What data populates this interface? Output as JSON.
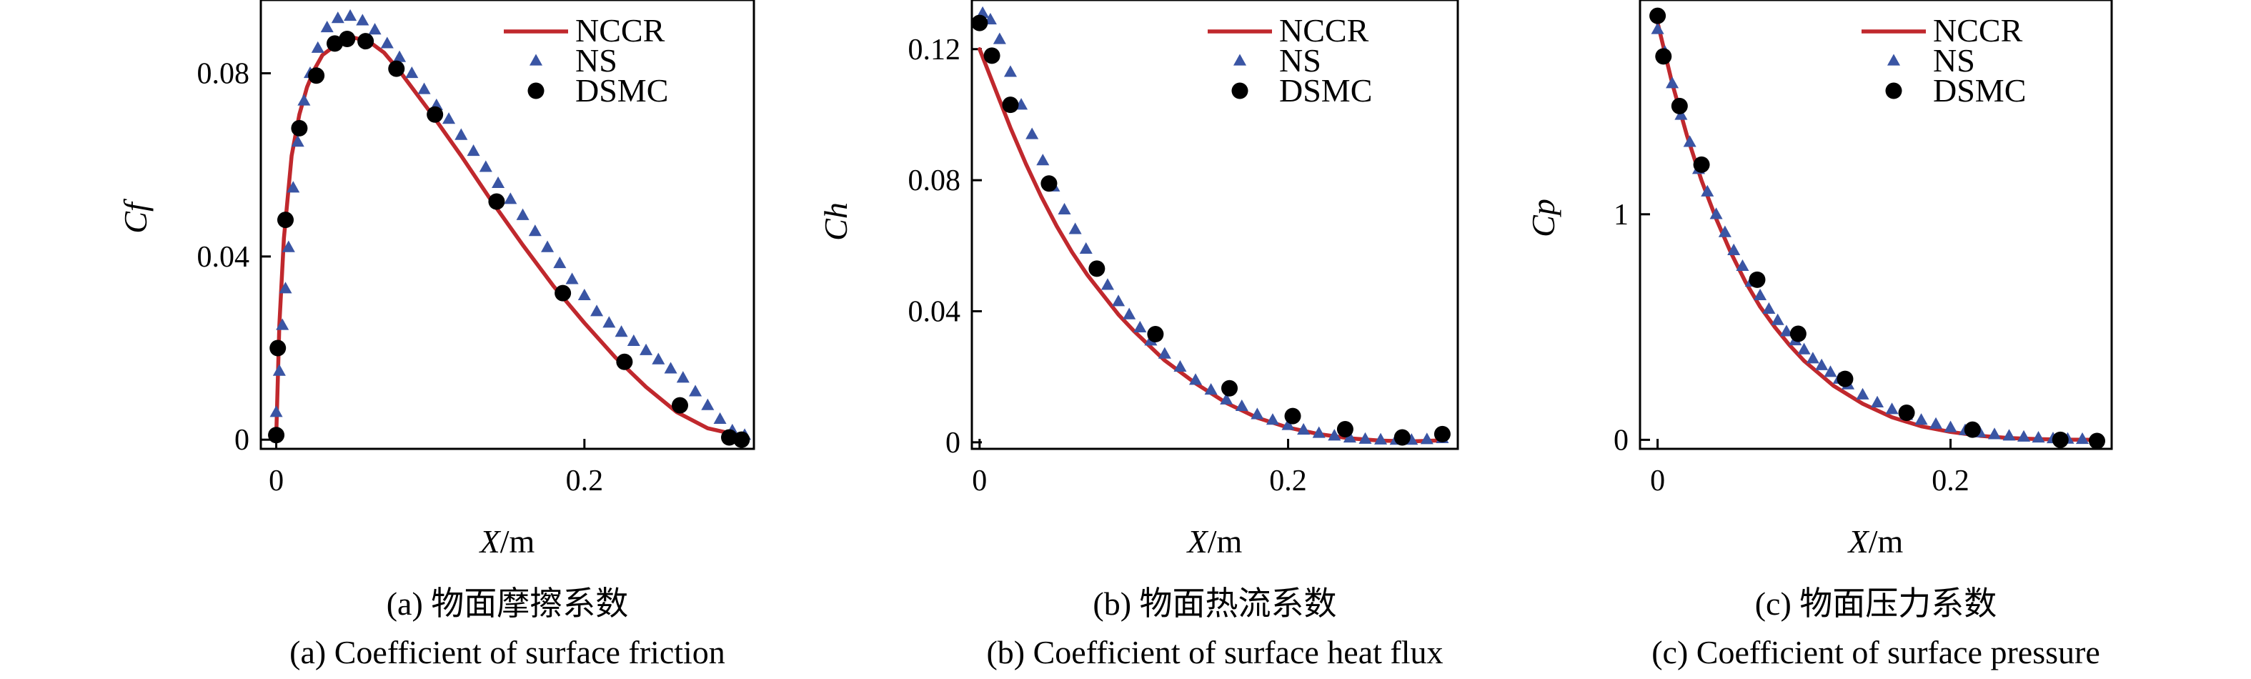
{
  "chart_data": [
    {
      "type": "line",
      "panel": "a",
      "ylabel": "Cf",
      "xlabel_var": "X",
      "xlabel_unit": "/m",
      "xlim": [
        -0.01,
        0.31
      ],
      "ylim": [
        -0.002,
        0.096
      ],
      "xticks": [
        0,
        0.2
      ],
      "xtick_labels": [
        "0",
        "0.2"
      ],
      "yticks": [
        0,
        0.04,
        0.08
      ],
      "ytick_labels": [
        "0",
        "0.04",
        "0.08"
      ],
      "caption_zh": "(a) 物面摩擦系数",
      "caption_en": "(a) Coefficient of surface friction",
      "legend_position": "top-right",
      "series": [
        {
          "name": "NCCR",
          "style": "line",
          "color": "#c0282d",
          "x": [
            0,
            0.002,
            0.005,
            0.01,
            0.015,
            0.02,
            0.025,
            0.03,
            0.04,
            0.05,
            0.06,
            0.07,
            0.08,
            0.1,
            0.12,
            0.14,
            0.16,
            0.18,
            0.2,
            0.22,
            0.24,
            0.26,
            0.28,
            0.3
          ],
          "y": [
            0.001,
            0.025,
            0.044,
            0.062,
            0.071,
            0.077,
            0.081,
            0.084,
            0.0865,
            0.0878,
            0.087,
            0.0845,
            0.0805,
            0.0715,
            0.062,
            0.052,
            0.0425,
            0.0335,
            0.0255,
            0.018,
            0.0115,
            0.006,
            0.0025,
            0.001
          ]
        },
        {
          "name": "NS",
          "style": "triangle",
          "color": "#3a55a4",
          "x": [
            0,
            0.002,
            0.004,
            0.006,
            0.008,
            0.011,
            0.014,
            0.018,
            0.022,
            0.027,
            0.033,
            0.04,
            0.048,
            0.056,
            0.064,
            0.072,
            0.08,
            0.088,
            0.096,
            0.104,
            0.112,
            0.12,
            0.128,
            0.136,
            0.144,
            0.152,
            0.16,
            0.168,
            0.176,
            0.184,
            0.192,
            0.2,
            0.208,
            0.216,
            0.224,
            0.232,
            0.24,
            0.248,
            0.256,
            0.264,
            0.272,
            0.28,
            0.288,
            0.296,
            0.304
          ],
          "y": [
            0.006,
            0.015,
            0.025,
            0.033,
            0.042,
            0.055,
            0.065,
            0.074,
            0.08,
            0.0855,
            0.09,
            0.092,
            0.0925,
            0.0915,
            0.0895,
            0.0865,
            0.0835,
            0.08,
            0.0765,
            0.073,
            0.07,
            0.0665,
            0.063,
            0.0595,
            0.056,
            0.0525,
            0.049,
            0.0455,
            0.042,
            0.0385,
            0.035,
            0.0315,
            0.028,
            0.0255,
            0.0235,
            0.0215,
            0.0195,
            0.0175,
            0.0155,
            0.0135,
            0.0105,
            0.0075,
            0.0045,
            0.002,
            0.001
          ]
        },
        {
          "name": "DSMC",
          "style": "circle",
          "color": "#000000",
          "x": [
            0,
            0.001,
            0.006,
            0.015,
            0.026,
            0.038,
            0.046,
            0.058,
            0.078,
            0.103,
            0.143,
            0.186,
            0.226,
            0.262,
            0.294,
            0.302
          ],
          "y": [
            0.001,
            0.02,
            0.048,
            0.068,
            0.0795,
            0.0865,
            0.0875,
            0.087,
            0.081,
            0.071,
            0.052,
            0.032,
            0.017,
            0.0075,
            0.0005,
            0.0
          ]
        }
      ]
    },
    {
      "type": "line",
      "panel": "b",
      "ylabel": "Ch",
      "xlabel_var": "X",
      "xlabel_unit": "/m",
      "xlim": [
        -0.005,
        0.31
      ],
      "ylim": [
        -0.002,
        0.135
      ],
      "xticks": [
        0,
        0.2
      ],
      "xtick_labels": [
        "0",
        "0.2"
      ],
      "yticks": [
        0,
        0.04,
        0.08,
        0.12
      ],
      "ytick_labels": [
        "0",
        "0.04",
        "0.08",
        "0.12"
      ],
      "caption_zh": "(b) 物面热流系数",
      "caption_en": "(b) Coefficient of surface heat flux",
      "legend_position": "top-right",
      "series": [
        {
          "name": "NCCR",
          "style": "line",
          "color": "#c0282d",
          "x": [
            0,
            0.01,
            0.02,
            0.03,
            0.04,
            0.05,
            0.06,
            0.07,
            0.08,
            0.09,
            0.1,
            0.12,
            0.14,
            0.16,
            0.18,
            0.2,
            0.22,
            0.24,
            0.26,
            0.28,
            0.3
          ],
          "y": [
            0.12,
            0.108,
            0.096,
            0.085,
            0.075,
            0.066,
            0.058,
            0.051,
            0.045,
            0.039,
            0.034,
            0.025,
            0.018,
            0.012,
            0.0075,
            0.0045,
            0.0025,
            0.0012,
            0.0005,
            0.0003,
            0.0006
          ]
        },
        {
          "name": "NS",
          "style": "triangle",
          "color": "#3a55a4",
          "x": [
            0.002,
            0.007,
            0.013,
            0.02,
            0.027,
            0.034,
            0.041,
            0.048,
            0.055,
            0.062,
            0.069,
            0.076,
            0.083,
            0.09,
            0.097,
            0.104,
            0.111,
            0.12,
            0.13,
            0.14,
            0.15,
            0.16,
            0.17,
            0.18,
            0.19,
            0.2,
            0.21,
            0.22,
            0.23,
            0.24,
            0.25,
            0.26,
            0.27,
            0.28,
            0.29,
            0.3
          ],
          "y": [
            0.131,
            0.129,
            0.123,
            0.113,
            0.103,
            0.094,
            0.086,
            0.078,
            0.071,
            0.065,
            0.059,
            0.053,
            0.048,
            0.043,
            0.039,
            0.035,
            0.031,
            0.027,
            0.023,
            0.019,
            0.016,
            0.013,
            0.011,
            0.0085,
            0.0068,
            0.0052,
            0.0038,
            0.0028,
            0.002,
            0.0014,
            0.001,
            0.0008,
            0.0007,
            0.0007,
            0.0009,
            0.0012
          ]
        },
        {
          "name": "DSMC",
          "style": "circle",
          "color": "#000000",
          "x": [
            0,
            0.008,
            0.02,
            0.045,
            0.076,
            0.114,
            0.162,
            0.203,
            0.237,
            0.274,
            0.3
          ],
          "y": [
            0.128,
            0.118,
            0.103,
            0.079,
            0.053,
            0.033,
            0.0165,
            0.008,
            0.004,
            0.0015,
            0.0025
          ]
        }
      ]
    },
    {
      "type": "line",
      "panel": "c",
      "ylabel": "Cp",
      "xlabel_var": "X",
      "xlabel_unit": "/m",
      "xlim": [
        -0.012,
        0.31
      ],
      "ylim": [
        -0.04,
        1.95
      ],
      "xticks": [
        0,
        0.2
      ],
      "xtick_labels": [
        "0",
        "0.2"
      ],
      "yticks": [
        0,
        1
      ],
      "ytick_labels": [
        "0",
        "1"
      ],
      "caption_zh": "(c) 物面压力系数",
      "caption_en": "(c) Coefficient of surface pressure",
      "legend_position": "top-right",
      "series": [
        {
          "name": "NCCR",
          "style": "line",
          "color": "#c0282d",
          "x": [
            0,
            0.01,
            0.02,
            0.03,
            0.04,
            0.05,
            0.06,
            0.07,
            0.08,
            0.09,
            0.1,
            0.12,
            0.14,
            0.16,
            0.18,
            0.2,
            0.22,
            0.24,
            0.26,
            0.28,
            0.3
          ],
          "y": [
            1.85,
            1.58,
            1.35,
            1.15,
            0.98,
            0.83,
            0.7,
            0.59,
            0.5,
            0.42,
            0.35,
            0.24,
            0.16,
            0.1,
            0.06,
            0.035,
            0.018,
            0.008,
            0.003,
            0.001,
            0.0
          ]
        },
        {
          "name": "NS",
          "style": "triangle",
          "color": "#3a55a4",
          "x": [
            0,
            0.005,
            0.01,
            0.016,
            0.022,
            0.028,
            0.034,
            0.04,
            0.046,
            0.052,
            0.058,
            0.064,
            0.07,
            0.076,
            0.082,
            0.088,
            0.094,
            0.1,
            0.106,
            0.112,
            0.118,
            0.124,
            0.13,
            0.14,
            0.15,
            0.16,
            0.17,
            0.18,
            0.19,
            0.2,
            0.21,
            0.22,
            0.23,
            0.24,
            0.25,
            0.26,
            0.27,
            0.28,
            0.29,
            0.3
          ],
          "y": [
            1.82,
            1.72,
            1.58,
            1.44,
            1.32,
            1.2,
            1.1,
            1.0,
            0.92,
            0.84,
            0.77,
            0.7,
            0.64,
            0.58,
            0.53,
            0.48,
            0.44,
            0.4,
            0.36,
            0.33,
            0.3,
            0.27,
            0.245,
            0.2,
            0.165,
            0.135,
            0.11,
            0.088,
            0.07,
            0.055,
            0.042,
            0.032,
            0.024,
            0.018,
            0.013,
            0.009,
            0.006,
            0.004,
            0.003,
            0.002
          ]
        },
        {
          "name": "DSMC",
          "style": "circle",
          "color": "#000000",
          "x": [
            0,
            0.004,
            0.015,
            0.03,
            0.068,
            0.096,
            0.128,
            0.17,
            0.215,
            0.275,
            0.3
          ],
          "y": [
            1.88,
            1.7,
            1.48,
            1.22,
            0.71,
            0.47,
            0.27,
            0.12,
            0.045,
            0.0,
            -0.005
          ]
        }
      ]
    }
  ]
}
